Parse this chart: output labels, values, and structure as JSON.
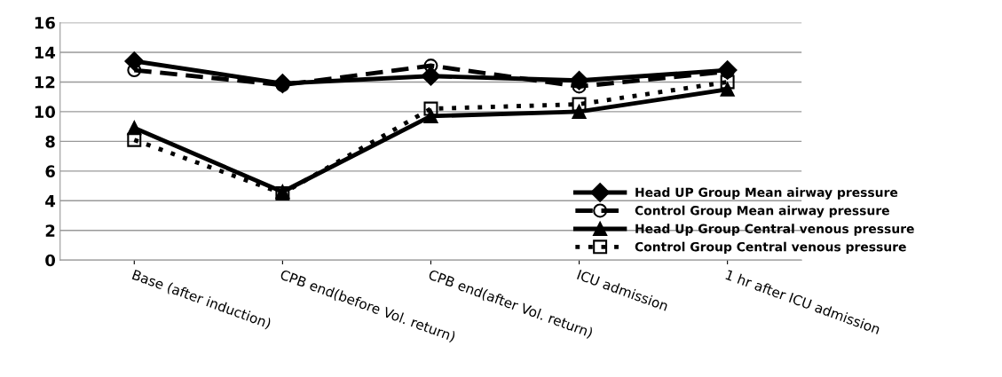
{
  "chart_data": {
    "type": "line",
    "categories": [
      "Base (after induction)",
      "CPB end(before Vol. return)",
      "CPB end(after Vol. return)",
      "ICU admission",
      "1 hr after ICU admission"
    ],
    "series": [
      {
        "name": "Head UP Group Mean airway pressure",
        "color": "#000000",
        "marker": "diamond",
        "line_style": "solid",
        "values": [
          13.4,
          11.9,
          12.4,
          12.1,
          12.8
        ]
      },
      {
        "name": "Control Group Mean airway pressure",
        "color": "#000000",
        "marker": "circle",
        "line_style": "dashed",
        "values": [
          12.8,
          11.8,
          13.1,
          11.7,
          12.7
        ]
      },
      {
        "name": "Head Up Group Central venous pressure",
        "color": "#000000",
        "marker": "triangle",
        "line_style": "solid",
        "values": [
          8.9,
          4.6,
          9.7,
          10.0,
          11.5
        ]
      },
      {
        "name": "Control Group Central venous pressure",
        "color": "#000000",
        "marker": "square",
        "line_style": "dotted",
        "values": [
          8.1,
          4.5,
          10.2,
          10.5,
          12.0
        ]
      }
    ],
    "ylim": [
      0,
      16
    ],
    "yticks": [
      0,
      2,
      4,
      6,
      8,
      10,
      12,
      14,
      16
    ],
    "grid": "y",
    "legend": "bottom right"
  }
}
